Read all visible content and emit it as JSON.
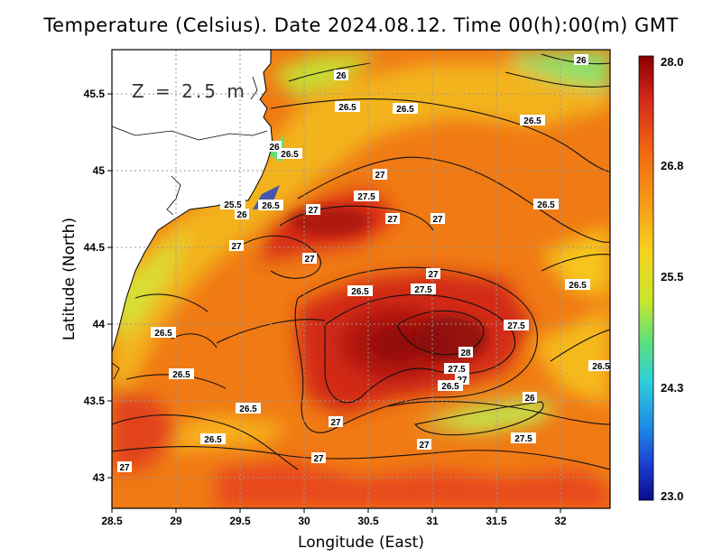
{
  "title": "Temperature (Celsius). Date 2024.08.12. Time 00(h):00(m) GMT",
  "depth_label": "Z = 2.5 m",
  "x_axis_label": "Longitude (East)",
  "y_axis_label": "Latitude (North)",
  "x_ticks": [
    "28.5",
    "29",
    "29.5",
    "30",
    "30.5",
    "31",
    "31.5",
    "32"
  ],
  "y_ticks": [
    "45.5",
    "45",
    "44.5",
    "44",
    "43.5",
    "43"
  ],
  "colorbar": {
    "min": 23.0,
    "max": 28.0,
    "labels": [
      "28.0",
      "26.8",
      "25.5",
      "24.3",
      "23.0"
    ],
    "colors": [
      "#8b0000",
      "#d42a1a",
      "#f26a10",
      "#f79a18",
      "#f5d21e",
      "#c8e62a",
      "#5fe07a",
      "#2fd0d8",
      "#1e8fe6",
      "#1a3fd0",
      "#0a0a8a"
    ]
  },
  "contour_labels": [
    {
      "text": "26"
    },
    {
      "text": "26.5"
    },
    {
      "text": "26.5"
    },
    {
      "text": "26.5"
    },
    {
      "text": "26.5"
    },
    {
      "text": "27"
    },
    {
      "text": "27.5"
    },
    {
      "text": "27"
    },
    {
      "text": "27"
    },
    {
      "text": "27"
    },
    {
      "text": "25.5"
    },
    {
      "text": "26"
    },
    {
      "text": "26.5"
    },
    {
      "text": "26.5"
    },
    {
      "text": "27"
    },
    {
      "text": "27"
    },
    {
      "text": "27"
    },
    {
      "text": "27.5"
    },
    {
      "text": "26.5"
    },
    {
      "text": "26.5"
    },
    {
      "text": "27.5"
    },
    {
      "text": "26.5"
    },
    {
      "text": "28"
    },
    {
      "text": "26.5"
    },
    {
      "text": "27.5"
    },
    {
      "text": "27"
    },
    {
      "text": "26.5"
    },
    {
      "text": "26"
    },
    {
      "text": "26.5"
    },
    {
      "text": "27"
    },
    {
      "text": "27.5"
    },
    {
      "text": "26.5"
    },
    {
      "text": "27"
    },
    {
      "text": "27"
    },
    {
      "text": "27"
    },
    {
      "text": "26"
    },
    {
      "text": "26.5"
    },
    {
      "text": "26"
    }
  ]
}
